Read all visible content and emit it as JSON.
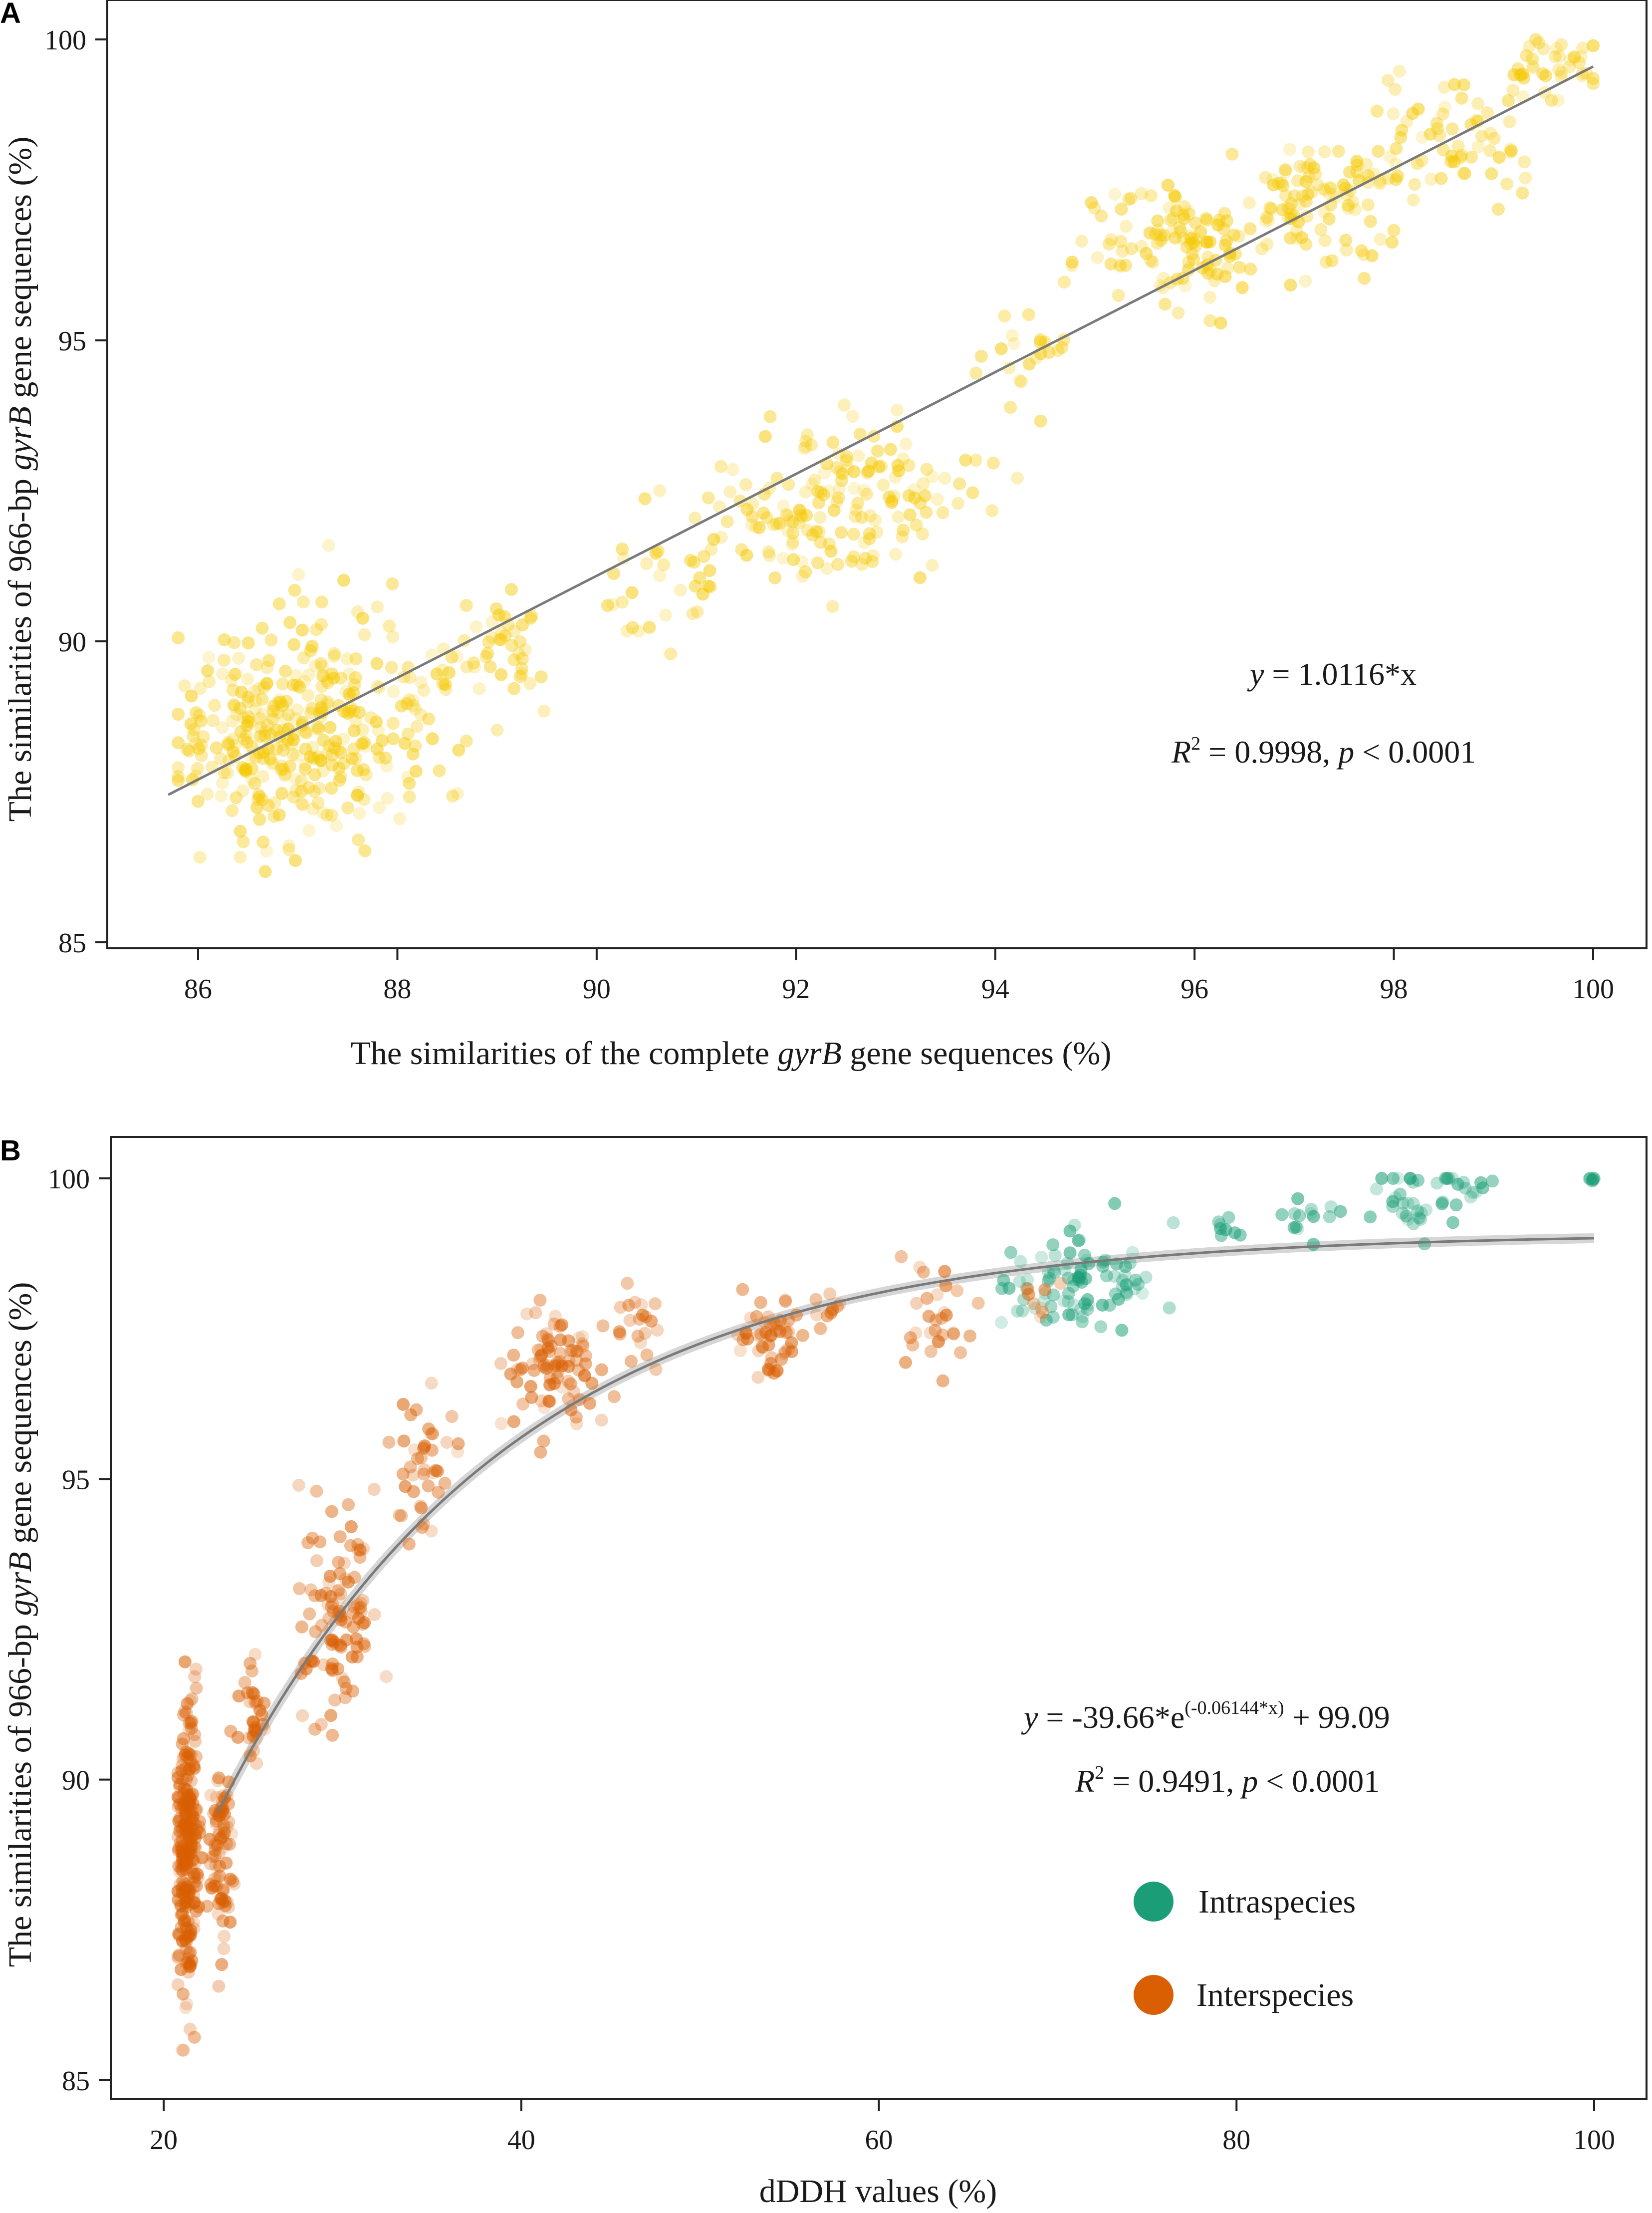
{
  "chart_data": [
    {
      "panel": "A",
      "type": "scatter",
      "xlabel_prefix": "The similarities of the complete ",
      "xlabel_gene": "gyrB",
      "xlabel_suffix": " gene sequences (%)",
      "ylabel_prefix": "The similarities of 966-bp ",
      "ylabel_gene": "gyrB",
      "ylabel_suffix": " gene sequences (%)",
      "xlim": [
        85.8,
        100.5
      ],
      "ylim": [
        85,
        100.5
      ],
      "xticks": [
        86,
        88,
        90,
        92,
        94,
        96,
        98,
        100
      ],
      "yticks": [
        85,
        90,
        95,
        100
      ],
      "point_color": "#f5c800",
      "fit": {
        "type": "linear",
        "slope": 1.0116,
        "x_range": [
          85.7,
          100
        ],
        "color": "#7a7a7a"
      },
      "equation": {
        "y": "y",
        "rest": " = 1.0116*x"
      },
      "r2": {
        "R": "R",
        "sup": "2",
        "mid": " = 0.9998, ",
        "p": "p",
        "end": " < 0.0001"
      },
      "clusters": [
        {
          "x": 86.8,
          "y": 88.5,
          "sx": 0.5,
          "sy": 0.9,
          "n": 260
        },
        {
          "x": 87.8,
          "y": 88.8,
          "sx": 0.5,
          "sy": 0.8,
          "n": 110
        },
        {
          "x": 89.0,
          "y": 89.9,
          "sx": 0.3,
          "sy": 0.5,
          "n": 40
        },
        {
          "x": 90.8,
          "y": 91.0,
          "sx": 0.4,
          "sy": 0.5,
          "n": 35
        },
        {
          "x": 92.0,
          "y": 92.0,
          "sx": 0.4,
          "sy": 0.6,
          "n": 90
        },
        {
          "x": 92.9,
          "y": 92.7,
          "sx": 0.5,
          "sy": 0.6,
          "n": 80
        },
        {
          "x": 94.3,
          "y": 94.8,
          "sx": 0.2,
          "sy": 0.3,
          "n": 20
        },
        {
          "x": 95.8,
          "y": 96.6,
          "sx": 0.5,
          "sy": 0.5,
          "n": 110
        },
        {
          "x": 97.2,
          "y": 97.3,
          "sx": 0.5,
          "sy": 0.5,
          "n": 100
        },
        {
          "x": 98.5,
          "y": 98.4,
          "sx": 0.5,
          "sy": 0.5,
          "n": 70
        },
        {
          "x": 99.6,
          "y": 99.6,
          "sx": 0.3,
          "sy": 0.3,
          "n": 40
        }
      ]
    },
    {
      "panel": "B",
      "type": "scatter",
      "xlabel": "dDDH values (%)",
      "ylabel_prefix": "The similarities of 966-bp ",
      "ylabel_gene": "gyrB",
      "ylabel_suffix": " gene sequences (%)",
      "xlim": [
        19,
        101.5
      ],
      "ylim": [
        85,
        100.6
      ],
      "xticks": [
        20,
        40,
        60,
        80,
        100
      ],
      "yticks": [
        85,
        90,
        95,
        100
      ],
      "fit": {
        "type": "exponential",
        "a": -39.66,
        "b": -0.06144,
        "c": 99.09,
        "x_range": [
          23,
          100
        ],
        "color": "#7a7a7a"
      },
      "equation": {
        "y": "y",
        "main": " = -39.66*e",
        "sup": "(-0.06144*x)",
        "end": " + 99.09"
      },
      "r2": {
        "R": "R",
        "sup": "2",
        "mid": " = 0.9491, ",
        "p": "p",
        "end": " < 0.0001"
      },
      "series": [
        {
          "name": "Intraspecies",
          "color": "#1b9e77",
          "clusters": [
            {
              "x": 71.5,
              "y": 98.3,
              "sx": 2.0,
              "sy": 0.4,
              "n": 90
            },
            {
              "x": 79.5,
              "y": 99.2,
              "sx": 0.6,
              "sy": 0.1,
              "n": 8
            },
            {
              "x": 84.0,
              "y": 99.4,
              "sx": 1.0,
              "sy": 0.2,
              "n": 14
            },
            {
              "x": 89.5,
              "y": 99.6,
              "sx": 1.3,
              "sy": 0.35,
              "n": 30
            },
            {
              "x": 93.0,
              "y": 99.8,
              "sx": 0.8,
              "sy": 0.2,
              "n": 14
            },
            {
              "x": 99.9,
              "y": 100.0,
              "sx": 0.1,
              "sy": 0.02,
              "n": 6
            }
          ]
        },
        {
          "name": "Interspecies",
          "color": "#d95f02",
          "clusters": [
            {
              "x": 21.3,
              "y": 88.8,
              "sx": 0.3,
              "sy": 1.2,
              "n": 260
            },
            {
              "x": 23.2,
              "y": 88.8,
              "sx": 0.3,
              "sy": 0.8,
              "n": 80
            },
            {
              "x": 25.0,
              "y": 91.0,
              "sx": 0.4,
              "sy": 0.6,
              "n": 30
            },
            {
              "x": 29.8,
              "y": 92.6,
              "sx": 1.1,
              "sy": 0.8,
              "n": 100
            },
            {
              "x": 34.5,
              "y": 95.4,
              "sx": 1.0,
              "sy": 0.6,
              "n": 40
            },
            {
              "x": 42.0,
              "y": 96.9,
              "sx": 1.4,
              "sy": 0.55,
              "n": 90
            },
            {
              "x": 46.5,
              "y": 97.6,
              "sx": 0.9,
              "sy": 0.3,
              "n": 20
            },
            {
              "x": 53.8,
              "y": 97.3,
              "sx": 1.0,
              "sy": 0.4,
              "n": 50
            },
            {
              "x": 57.0,
              "y": 97.8,
              "sx": 0.8,
              "sy": 0.2,
              "n": 10
            },
            {
              "x": 63.5,
              "y": 97.7,
              "sx": 1.3,
              "sy": 0.5,
              "n": 30
            },
            {
              "x": 69.0,
              "y": 98.0,
              "sx": 0.4,
              "sy": 0.2,
              "n": 8
            }
          ]
        }
      ]
    }
  ]
}
